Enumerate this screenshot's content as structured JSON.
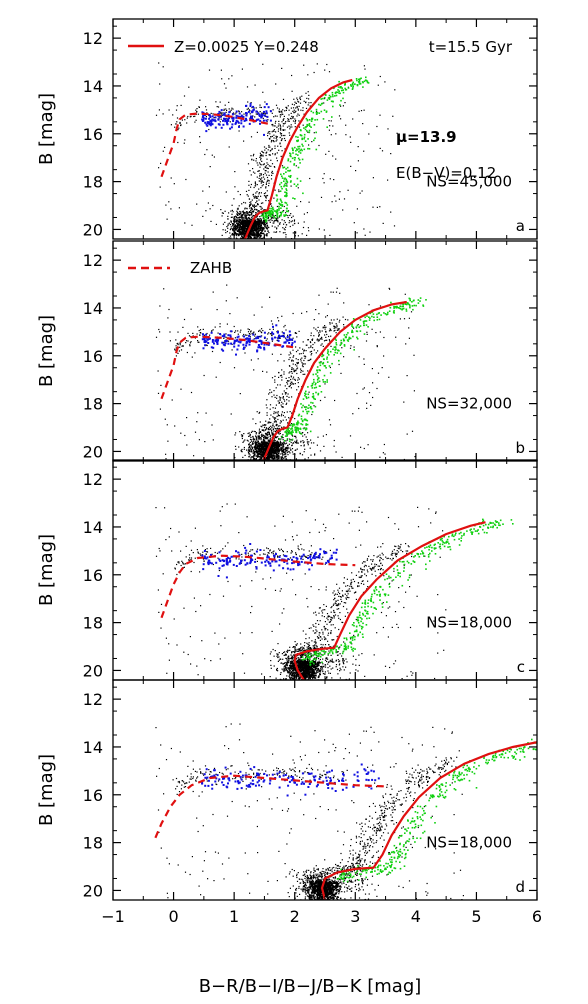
{
  "figure": {
    "x_axis_label": "B−R/B−I/B−J/B−K  [mag]",
    "y_axis_label": "B  [mag]",
    "x_ticks": [
      "−1",
      "0",
      "1",
      "2",
      "3",
      "4",
      "5",
      "6"
    ],
    "y_ticks": [
      "12",
      "14",
      "16",
      "18",
      "20"
    ]
  },
  "legend": {
    "model_label": "Z=0.0025  Y=0.248",
    "age_label": "t=15.5 Gyr",
    "zahb_label": "ZAHB"
  },
  "params": {
    "mu": "μ=13.9",
    "reddening": "E(B−V)=0.12"
  },
  "colors": {
    "isochrone": "#e01010",
    "zahb": "#e01010",
    "data_points": "#000000",
    "hb_stars": "#1010e0",
    "rgb_stars": "#10d010"
  },
  "chart_data": [
    {
      "panel": "a",
      "type": "scatter",
      "ns_label": "NS=45,000",
      "xlim": [
        -1,
        6
      ],
      "ylim": [
        20.4,
        11.2
      ],
      "isochrone": {
        "x": [
          1.18,
          1.28,
          1.35,
          1.42,
          1.48,
          1.55,
          1.62,
          1.7,
          1.8,
          1.92,
          2.05,
          2.2,
          2.4,
          2.6,
          2.8,
          2.95
        ],
        "y": [
          20.4,
          19.8,
          19.45,
          19.3,
          19.25,
          19.2,
          18.6,
          17.8,
          17.0,
          16.3,
          15.7,
          15.1,
          14.5,
          14.1,
          13.85,
          13.75
        ]
      },
      "zahb": {
        "x": [
          -0.2,
          -0.1,
          0.0,
          0.05,
          0.1,
          0.2,
          0.4,
          0.7,
          1.0,
          1.3,
          1.6
        ],
        "y": [
          17.8,
          17.1,
          16.4,
          15.8,
          15.4,
          15.2,
          15.15,
          15.2,
          15.3,
          15.45,
          15.6
        ]
      }
    },
    {
      "panel": "b",
      "type": "scatter",
      "ns_label": "NS=32,000",
      "xlim": [
        -1,
        6
      ],
      "ylim": [
        20.4,
        11.2
      ],
      "isochrone": {
        "x": [
          1.48,
          1.58,
          1.65,
          1.72,
          1.8,
          1.88,
          1.96,
          2.05,
          2.18,
          2.32,
          2.5,
          2.75,
          3.0,
          3.3,
          3.6,
          3.85
        ],
        "y": [
          20.4,
          19.8,
          19.4,
          19.15,
          19.05,
          19.0,
          18.5,
          17.8,
          17.0,
          16.3,
          15.7,
          15.0,
          14.5,
          14.1,
          13.85,
          13.75
        ]
      },
      "zahb": {
        "x": [
          -0.2,
          -0.1,
          0.0,
          0.05,
          0.1,
          0.2,
          0.4,
          0.8,
          1.2,
          1.6,
          2.0
        ],
        "y": [
          17.8,
          17.1,
          16.4,
          15.8,
          15.45,
          15.25,
          15.2,
          15.25,
          15.35,
          15.5,
          15.65
        ]
      }
    },
    {
      "panel": "c",
      "type": "scatter",
      "ns_label": "NS=18,000",
      "xlim": [
        -1,
        6
      ],
      "ylim": [
        20.4,
        11.2
      ],
      "isochrone": {
        "x": [
          2.15,
          2.05,
          2.0,
          2.02,
          2.2,
          2.45,
          2.65,
          2.75,
          2.9,
          3.1,
          3.35,
          3.7,
          4.1,
          4.5,
          4.9,
          5.15
        ],
        "y": [
          20.4,
          20.0,
          19.6,
          19.35,
          19.2,
          19.1,
          19.05,
          18.5,
          17.7,
          16.9,
          16.2,
          15.4,
          14.8,
          14.3,
          13.95,
          13.8
        ]
      },
      "zahb": {
        "x": [
          -0.2,
          -0.1,
          0.0,
          0.1,
          0.2,
          0.4,
          0.8,
          1.2,
          1.6,
          2.0,
          2.5,
          3.0
        ],
        "y": [
          17.8,
          17.1,
          16.4,
          15.9,
          15.55,
          15.3,
          15.2,
          15.25,
          15.35,
          15.45,
          15.55,
          15.6
        ]
      }
    },
    {
      "panel": "d",
      "type": "scatter",
      "ns_label": "NS=18,000",
      "xlim": [
        -1,
        6
      ],
      "ylim": [
        20.4,
        11.2
      ],
      "isochrone": {
        "x": [
          2.5,
          2.45,
          2.5,
          2.7,
          3.0,
          3.3,
          3.45,
          3.6,
          3.8,
          4.05,
          4.4,
          4.8,
          5.2,
          5.6,
          6.0
        ],
        "y": [
          20.4,
          19.9,
          19.5,
          19.25,
          19.1,
          19.05,
          18.5,
          17.7,
          16.9,
          16.1,
          15.3,
          14.7,
          14.3,
          14.0,
          13.8
        ]
      },
      "zahb": {
        "x": [
          -0.3,
          -0.2,
          -0.05,
          0.1,
          0.3,
          0.6,
          1.0,
          1.5,
          2.0,
          2.5,
          3.0,
          3.5
        ],
        "y": [
          17.8,
          17.2,
          16.5,
          16.0,
          15.6,
          15.3,
          15.2,
          15.3,
          15.4,
          15.5,
          15.6,
          15.65
        ]
      }
    }
  ]
}
